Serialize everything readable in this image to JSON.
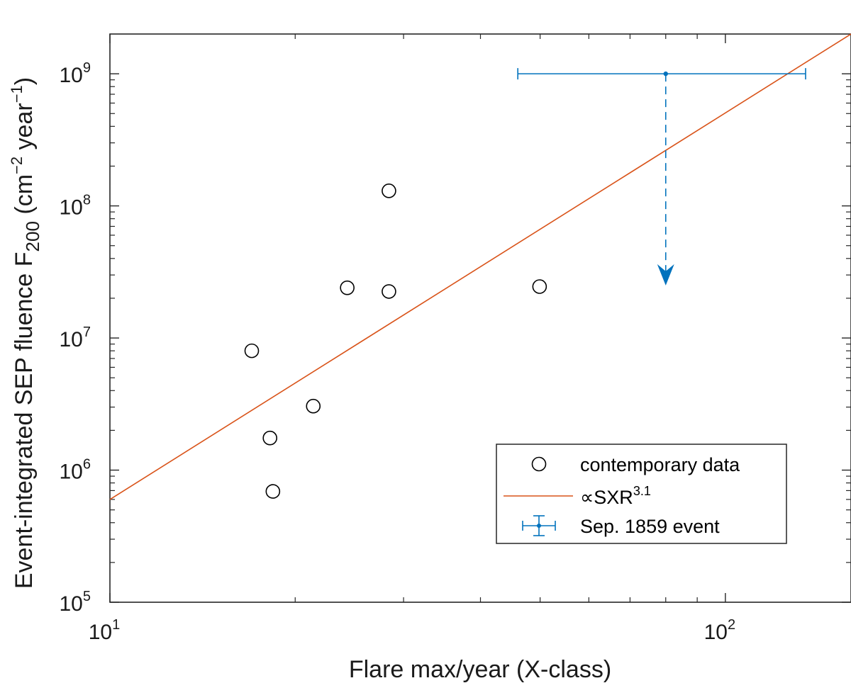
{
  "chart_data": {
    "type": "scatter",
    "xlabel": "Flare max/year (X-class)",
    "ylabel": {
      "prefix": "Event-integrated SEP fluence F",
      "subscript": "200",
      "units_open": " (cm",
      "exp1": "−2",
      "units_mid": " year",
      "exp2": "−1",
      "units_close": ")"
    },
    "x_scale": "log",
    "y_scale": "log",
    "xlim": [
      10,
      160
    ],
    "ylim": [
      100000,
      2000000000
    ],
    "x_ticks": [
      {
        "value": 10,
        "base": "10",
        "exp": "1"
      },
      {
        "value": 100,
        "base": "10",
        "exp": "2"
      }
    ],
    "y_ticks": [
      {
        "value": 100000,
        "base": "10",
        "exp": "5"
      },
      {
        "value": 1000000,
        "base": "10",
        "exp": "6"
      },
      {
        "value": 10000000,
        "base": "10",
        "exp": "7"
      },
      {
        "value": 100000000,
        "base": "10",
        "exp": "8"
      },
      {
        "value": 1000000000,
        "base": "10",
        "exp": "9"
      }
    ],
    "grid": false,
    "legend_position": "bottom-right",
    "series": [
      {
        "name": "contemporary data",
        "marker": "open-circle",
        "color": "#000000",
        "points": [
          {
            "x": 17.0,
            "y": 8000000
          },
          {
            "x": 18.2,
            "y": 1750000
          },
          {
            "x": 18.4,
            "y": 690000
          },
          {
            "x": 21.4,
            "y": 3050000
          },
          {
            "x": 24.3,
            "y": 24000000
          },
          {
            "x": 28.4,
            "y": 130000000
          },
          {
            "x": 28.4,
            "y": 22500000
          },
          {
            "x": 49.9,
            "y": 24500000
          }
        ]
      },
      {
        "name": "∝SXR",
        "name_sup": "3.1",
        "type": "line",
        "color": "#d95319",
        "points": [
          {
            "x": 10,
            "y": 600000
          },
          {
            "x": 160,
            "y": 2000000000
          }
        ]
      },
      {
        "name": "Sep. 1859 event",
        "type": "errorbar",
        "color": "#0072bd",
        "point": {
          "x": 80,
          "y": 1000000000
        },
        "x_error": [
          46,
          135
        ],
        "upper_limit_arrow_to": 25000000
      }
    ]
  }
}
